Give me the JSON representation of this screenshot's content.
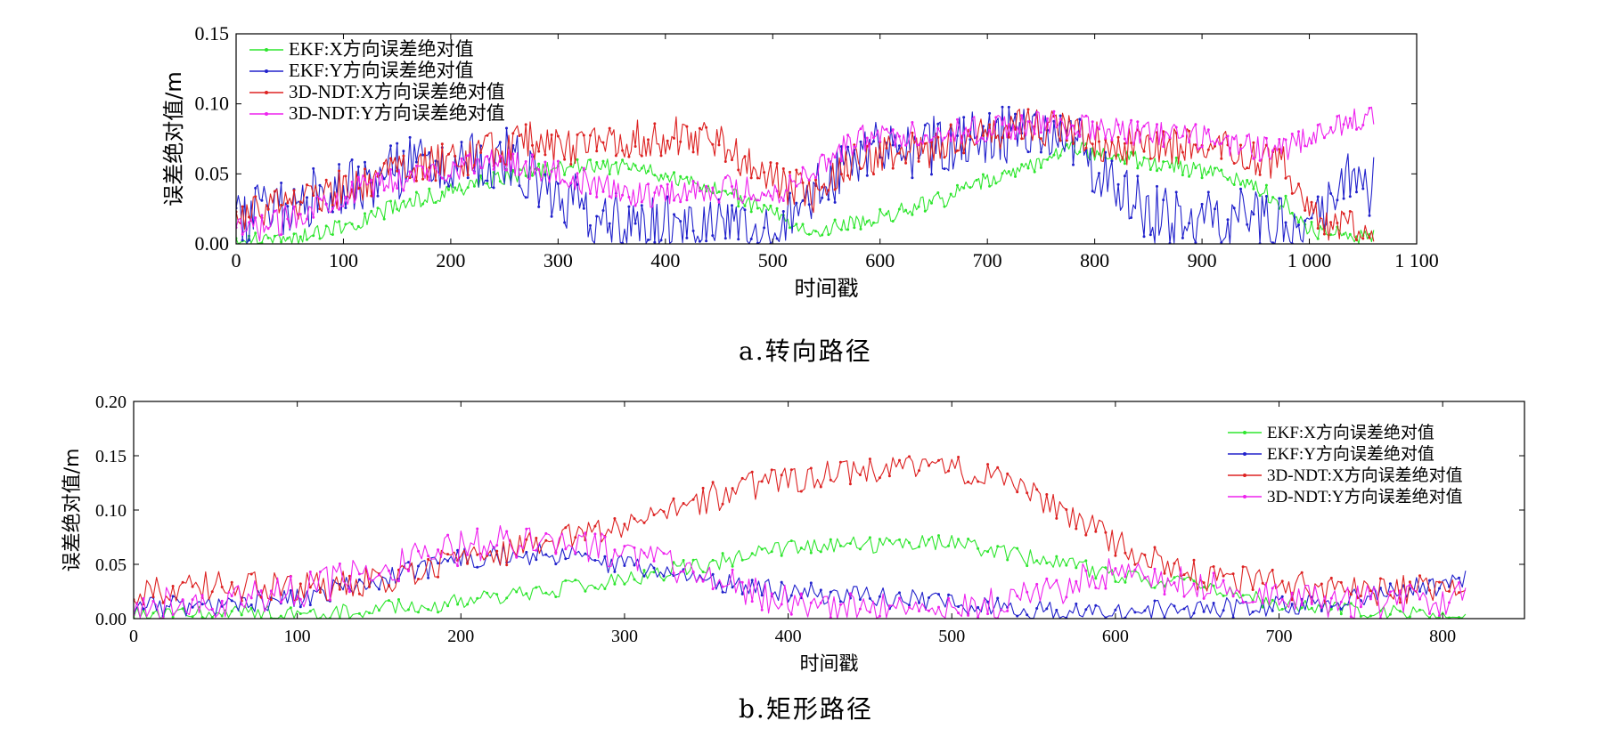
{
  "figure": {
    "caption_a": "a.转向路径",
    "caption_b": "b.矩形路径"
  },
  "chart_data": [
    {
      "type": "line",
      "xlabel": "时间戳",
      "ylabel": "误差绝对值/m",
      "xlim": [
        0,
        1100
      ],
      "ylim": [
        0,
        0.15
      ],
      "xticks": [
        0,
        100,
        200,
        300,
        400,
        500,
        600,
        700,
        800,
        900,
        1000,
        1100
      ],
      "xtick_labels": [
        "0",
        "100",
        "200",
        "300",
        "400",
        "500",
        "600",
        "700",
        "800",
        "900",
        "1 000",
        "1 100"
      ],
      "yticks": [
        0,
        0.05,
        0.1,
        0.15
      ],
      "ytick_labels": [
        "0.00",
        "0.05",
        "0.10",
        "0.15"
      ],
      "legend_position": "top-left",
      "series": [
        {
          "name": "EKF:X方向误差绝对值",
          "color": "#2ee62e",
          "x": [
            0,
            40,
            80,
            120,
            160,
            200,
            250,
            300,
            340,
            380,
            420,
            460,
            500,
            540,
            580,
            620,
            660,
            700,
            740,
            780,
            820,
            860,
            900,
            940,
            980,
            1000,
            1030,
            1060
          ],
          "y": [
            0.002,
            0.003,
            0.008,
            0.018,
            0.03,
            0.038,
            0.048,
            0.055,
            0.056,
            0.052,
            0.044,
            0.035,
            0.022,
            0.01,
            0.015,
            0.024,
            0.032,
            0.045,
            0.055,
            0.068,
            0.062,
            0.058,
            0.052,
            0.044,
            0.028,
            0.01,
            0.006,
            0.004
          ],
          "jitter": 0.006
        },
        {
          "name": "EKF:Y方向误差绝对值",
          "color": "#2222cc",
          "x": [
            0,
            40,
            80,
            120,
            160,
            200,
            250,
            300,
            340,
            380,
            420,
            460,
            500,
            540,
            580,
            620,
            660,
            700,
            740,
            780,
            820,
            860,
            900,
            940,
            980,
            1000,
            1030,
            1060
          ],
          "y": [
            0.018,
            0.025,
            0.035,
            0.045,
            0.055,
            0.058,
            0.062,
            0.035,
            0.018,
            0.012,
            0.015,
            0.008,
            0.004,
            0.035,
            0.065,
            0.068,
            0.07,
            0.075,
            0.08,
            0.075,
            0.035,
            0.02,
            0.015,
            0.018,
            0.012,
            0.02,
            0.045,
            0.04
          ],
          "jitter": 0.022
        },
        {
          "name": "3D-NDT:X方向误差绝对值",
          "color": "#dd2222",
          "x": [
            0,
            40,
            80,
            120,
            160,
            200,
            250,
            270,
            300,
            340,
            380,
            420,
            460,
            500,
            540,
            580,
            620,
            660,
            700,
            740,
            780,
            820,
            860,
            900,
            940,
            980,
            1000,
            1030,
            1060
          ],
          "y": [
            0.018,
            0.028,
            0.035,
            0.045,
            0.052,
            0.06,
            0.068,
            0.075,
            0.068,
            0.072,
            0.076,
            0.078,
            0.068,
            0.045,
            0.035,
            0.06,
            0.065,
            0.07,
            0.08,
            0.085,
            0.078,
            0.07,
            0.068,
            0.07,
            0.065,
            0.055,
            0.02,
            0.012,
            0.008
          ],
          "jitter": 0.014
        },
        {
          "name": "3D-NDT:Y方向误差绝对值",
          "color": "#ee22ee",
          "x": [
            0,
            40,
            80,
            120,
            160,
            200,
            250,
            300,
            340,
            380,
            420,
            460,
            500,
            540,
            580,
            620,
            660,
            700,
            740,
            780,
            820,
            860,
            900,
            940,
            980,
            1000,
            1030,
            1060
          ],
          "y": [
            0.008,
            0.015,
            0.03,
            0.04,
            0.048,
            0.055,
            0.06,
            0.05,
            0.04,
            0.035,
            0.038,
            0.04,
            0.035,
            0.055,
            0.075,
            0.078,
            0.08,
            0.082,
            0.085,
            0.085,
            0.08,
            0.078,
            0.075,
            0.07,
            0.068,
            0.075,
            0.085,
            0.095
          ],
          "jitter": 0.01
        }
      ]
    },
    {
      "type": "line",
      "xlabel": "时间戳",
      "ylabel": "误差绝对值/m",
      "xlim": [
        0,
        850
      ],
      "ylim": [
        0,
        0.2
      ],
      "xticks": [
        0,
        100,
        200,
        300,
        400,
        500,
        600,
        700,
        800
      ],
      "xtick_labels": [
        "0",
        "100",
        "200",
        "300",
        "400",
        "500",
        "600",
        "700",
        "800"
      ],
      "yticks": [
        0,
        0.05,
        0.1,
        0.15,
        0.2
      ],
      "ytick_labels": [
        "0.00",
        "0.05",
        "0.10",
        "0.15",
        "0.20"
      ],
      "legend_position": "top-right",
      "series": [
        {
          "name": "EKF:X方向误差绝对值",
          "color": "#2ee62e",
          "x": [
            0,
            50,
            100,
            150,
            200,
            250,
            300,
            350,
            400,
            450,
            500,
            550,
            600,
            650,
            700,
            750,
            815
          ],
          "y": [
            0.003,
            0.004,
            0.006,
            0.008,
            0.015,
            0.025,
            0.035,
            0.05,
            0.065,
            0.068,
            0.07,
            0.055,
            0.04,
            0.03,
            0.015,
            0.005,
            0.003
          ],
          "jitter": 0.008
        },
        {
          "name": "EKF:Y方向误差绝对值",
          "color": "#2222cc",
          "x": [
            0,
            50,
            100,
            150,
            200,
            250,
            300,
            350,
            400,
            450,
            500,
            550,
            600,
            650,
            700,
            750,
            815
          ],
          "y": [
            0.01,
            0.012,
            0.02,
            0.035,
            0.055,
            0.06,
            0.05,
            0.035,
            0.025,
            0.02,
            0.015,
            0.008,
            0.006,
            0.008,
            0.012,
            0.02,
            0.035
          ],
          "jitter": 0.01
        },
        {
          "name": "3D-NDT:X方向误差绝对值",
          "color": "#dd2222",
          "x": [
            0,
            50,
            100,
            150,
            200,
            250,
            300,
            350,
            400,
            450,
            500,
            550,
            600,
            650,
            700,
            750,
            815
          ],
          "y": [
            0.025,
            0.03,
            0.028,
            0.035,
            0.055,
            0.07,
            0.085,
            0.11,
            0.13,
            0.135,
            0.14,
            0.115,
            0.07,
            0.04,
            0.03,
            0.025,
            0.03
          ],
          "jitter": 0.014
        },
        {
          "name": "3D-NDT:Y方向误差绝对值",
          "color": "#ee22ee",
          "x": [
            0,
            50,
            100,
            150,
            200,
            250,
            300,
            350,
            400,
            450,
            500,
            550,
            600,
            650,
            700,
            750,
            815
          ],
          "y": [
            0.012,
            0.015,
            0.025,
            0.045,
            0.065,
            0.075,
            0.06,
            0.04,
            0.015,
            0.008,
            0.006,
            0.02,
            0.045,
            0.03,
            0.02,
            0.015,
            0.02
          ],
          "jitter": 0.016
        }
      ]
    }
  ]
}
